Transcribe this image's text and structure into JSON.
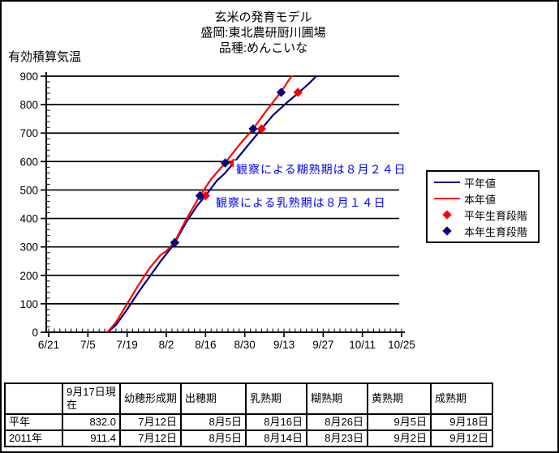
{
  "title": {
    "line1": "玄米の発育モデル",
    "line2": "盛岡:東北農研厨川圃場",
    "line3": "品種:めんこいな"
  },
  "y_axis_title": "有効積算気温",
  "colors": {
    "normal_year_line": "#000080",
    "this_year_line": "#ff0000",
    "normal_year_marker": "#ff0000",
    "this_year_marker": "#000080",
    "annotation_text": "#0000ff",
    "axis": "#000000"
  },
  "legend": {
    "items": [
      {
        "label": "平年値",
        "type": "line",
        "color": "#000080"
      },
      {
        "label": "本年値",
        "type": "line",
        "color": "#ff0000"
      },
      {
        "label": "平年生育段階",
        "type": "diamond",
        "color": "#ff0000"
      },
      {
        "label": "本年生育段階",
        "type": "diamond",
        "color": "#000080"
      }
    ]
  },
  "annotations": [
    {
      "id": "dough",
      "text": "観察による糊熟期は８月２４日"
    },
    {
      "id": "milk",
      "text": "観察による乳熟期は８月１４日"
    }
  ],
  "chart_data": {
    "type": "line",
    "title": "玄米の発育モデル 盛岡:東北農研厨川圃場 品種:めんこいな",
    "ylabel": "有効積算気温",
    "ylim": [
      0,
      900
    ],
    "ytick_step": 100,
    "yminor_step": 20,
    "x_range_days": 126,
    "x_tick_labels": [
      "6/21",
      "7/5",
      "7/19",
      "8/2",
      "8/16",
      "8/30",
      "9/13",
      "9/27",
      "10/11",
      "10/25"
    ],
    "xminor_step_days": 2,
    "grid": "horizontal",
    "legend_position": "right",
    "series": [
      {
        "name": "平年値",
        "color": "#000080",
        "points": [
          [
            "7/12",
            0
          ],
          [
            "7/15",
            25
          ],
          [
            "7/19",
            80
          ],
          [
            "7/23",
            140
          ],
          [
            "7/27",
            195
          ],
          [
            "7/31",
            250
          ],
          [
            "8/4",
            300
          ],
          [
            "8/5",
            315
          ],
          [
            "8/9",
            385
          ],
          [
            "8/13",
            445
          ],
          [
            "8/16",
            480
          ],
          [
            "8/20",
            532
          ],
          [
            "8/23",
            560
          ],
          [
            "8/26",
            595
          ],
          [
            "8/31",
            655
          ],
          [
            "9/5",
            715
          ],
          [
            "9/9",
            762
          ],
          [
            "9/14",
            807
          ],
          [
            "9/18",
            840
          ],
          [
            "9/22",
            875
          ],
          [
            "9/26",
            915
          ]
        ]
      },
      {
        "name": "本年値",
        "color": "#ff0000",
        "points": [
          [
            "7/12",
            0
          ],
          [
            "7/15",
            35
          ],
          [
            "7/19",
            100
          ],
          [
            "7/23",
            165
          ],
          [
            "7/27",
            225
          ],
          [
            "7/31",
            272
          ],
          [
            "8/2",
            285
          ],
          [
            "8/5",
            318
          ],
          [
            "8/9",
            395
          ],
          [
            "8/14",
            480
          ],
          [
            "8/18",
            538
          ],
          [
            "8/23",
            595
          ],
          [
            "8/28",
            658
          ],
          [
            "9/2",
            715
          ],
          [
            "9/7",
            782
          ],
          [
            "9/12",
            845
          ],
          [
            "9/15",
            890
          ],
          [
            "9/17",
            915
          ]
        ]
      }
    ],
    "markers": [
      {
        "name": "平年生育段階",
        "color": "#ff0000",
        "points": [
          [
            "8/5",
            315
          ],
          [
            "8/16",
            480
          ],
          [
            "8/26",
            595
          ],
          [
            "9/5",
            715
          ],
          [
            "9/18",
            843
          ]
        ]
      },
      {
        "name": "本年生育段階",
        "color": "#000080",
        "points": [
          [
            "8/5",
            315
          ],
          [
            "8/14",
            480
          ],
          [
            "8/23",
            595
          ],
          [
            "9/2",
            715
          ],
          [
            "9/12",
            843
          ]
        ]
      }
    ]
  },
  "table": {
    "columns": [
      "",
      "9月17日現在",
      "幼穂形成期",
      "出穂期",
      "乳熟期",
      "糊熟期",
      "黄熟期",
      "成熟期"
    ],
    "rows": [
      {
        "label": "平年",
        "values": [
          "832.0",
          "7月12日",
          "8月5日",
          "8月16日",
          "8月26日",
          "9月5日",
          "9月18日"
        ]
      },
      {
        "label": "2011年",
        "values": [
          "911.4",
          "7月12日",
          "8月5日",
          "8月14日",
          "8月23日",
          "9月2日",
          "9月12日"
        ]
      }
    ]
  }
}
